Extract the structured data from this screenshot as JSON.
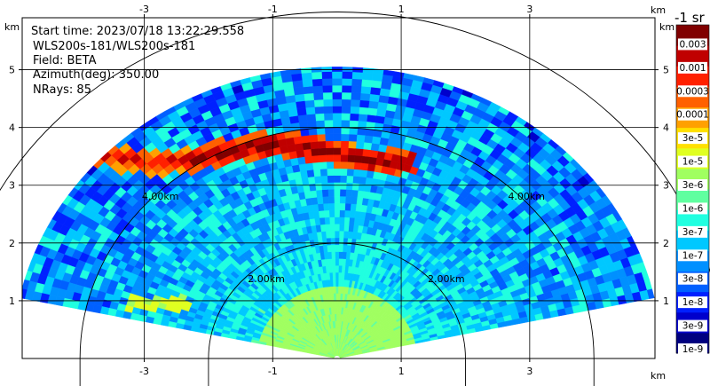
{
  "chart_data": {
    "type": "heatmap",
    "title": "",
    "info_lines": [
      "Start time: 2023/07/18 13:22:29.558",
      "WLS200s-181/WLS200s-181",
      "Field: BETA",
      "Azimuth(deg): 350.00",
      "NRays: 85"
    ],
    "x_unit": "km",
    "y_unit": "km",
    "xlim": [
      -4.9,
      4.95
    ],
    "ylim": [
      0,
      5.9
    ],
    "x_ticks": [
      -3,
      -1,
      1,
      3
    ],
    "y_ticks": [
      1,
      2,
      3,
      4,
      5
    ],
    "x_tick_labels": [
      "-3",
      "-1",
      "1",
      "3"
    ],
    "y_tick_labels": [
      "1",
      "2",
      "3",
      "4",
      "5"
    ],
    "grid": true,
    "scan_sector_deg": [
      12,
      168
    ],
    "max_range_km": 5.05,
    "range_rings": [
      {
        "radius_km": 2,
        "label": "2.00km",
        "labels_at_x": [
          -1.1,
          1.7
        ],
        "label_y": 1.32
      },
      {
        "radius_km": 4,
        "label": "4.00km",
        "labels_at_x": [
          -2.75,
          2.95
        ],
        "label_y": 2.75
      },
      {
        "radius_km": 6,
        "label": "",
        "labels_at_x": [],
        "label_y": 0
      }
    ],
    "features": [
      {
        "name": "strong aerosol layer",
        "center_height_km": 3.55,
        "x_extent_km": [
          -4.0,
          1.2
        ]
      },
      {
        "name": "weak layer",
        "center_height_km": 0.95,
        "x_extent_km": [
          -3.3,
          -2.3
        ]
      }
    ],
    "colorbar": {
      "title": "-1 sr",
      "position": "right",
      "labels": [
        "1e-9",
        "3e-9",
        "1e-8",
        "3e-8",
        "1e-7",
        "3e-7",
        "1e-6",
        "3e-6",
        "1e-5",
        "3e-5",
        "0.0001",
        "0.0003",
        "0.001",
        "0.003"
      ],
      "colors": [
        "#000080",
        "#0000cc",
        "#0020ff",
        "#0060ff",
        "#0090ff",
        "#00c8ff",
        "#20ffe0",
        "#60ffa0",
        "#a0ff60",
        "#e0ff20",
        "#ffe000",
        "#ffa000",
        "#ff6000",
        "#ff2000",
        "#c00000",
        "#800000"
      ]
    }
  }
}
